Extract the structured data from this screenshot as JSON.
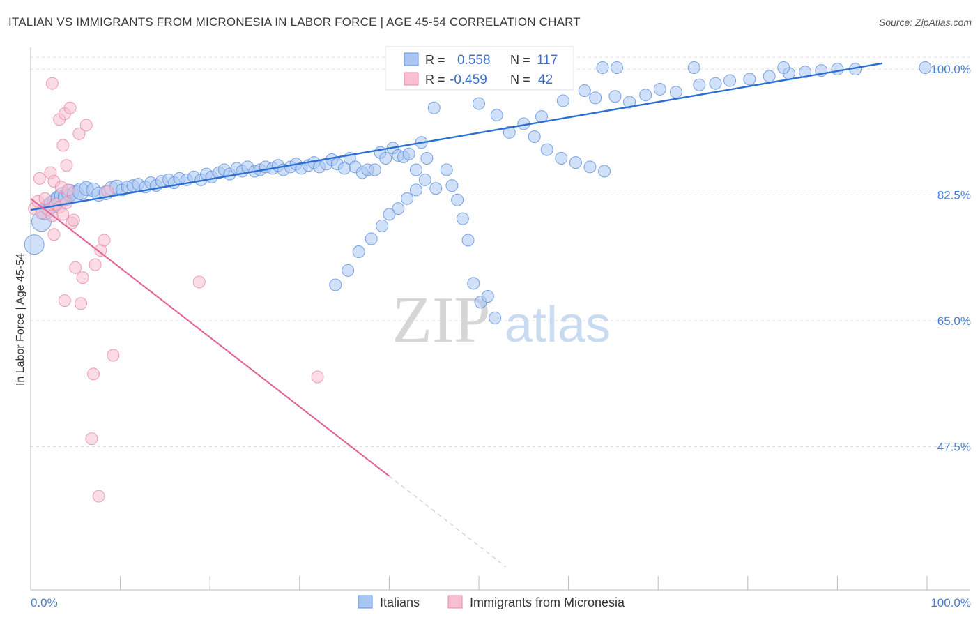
{
  "title": "ITALIAN VS IMMIGRANTS FROM MICRONESIA IN LABOR FORCE | AGE 45-54 CORRELATION CHART",
  "source": "Source: ZipAtlas.com",
  "watermark": {
    "zip": "ZIP",
    "atlas": "atlas"
  },
  "colors": {
    "blue": "#5b8fdc",
    "blue_fill": "#a9c6f2",
    "blue_line": "#2a6fd1",
    "pink": "#e888a8",
    "pink_fill": "#f7bfd0",
    "pink_line": "#e0699a",
    "grid": "#dddddd",
    "axis_label": "#4a7fd0"
  },
  "chart_data": {
    "type": "scatter",
    "xlabel": "",
    "ylabel": "In Labor Force | Age 45-54",
    "xlim": [
      0,
      100
    ],
    "ylim": [
      30,
      101.8
    ],
    "x_tick_labels": [
      "0.0%",
      "100.0%"
    ],
    "y_ticks": [
      47.5,
      65.0,
      82.5,
      100.0
    ],
    "y_tick_labels": [
      "47.5%",
      "65.0%",
      "82.5%",
      "100.0%"
    ],
    "legend_stats": [
      {
        "r_label": "R =",
        "r_value": "0.558",
        "n_label": "N =",
        "n_value": "117"
      },
      {
        "r_label": "R =",
        "r_value": "-0.459",
        "n_label": "N =",
        "n_value": "42"
      }
    ],
    "series": [
      {
        "name": "Italians",
        "trend": {
          "x": [
            0,
            95
          ],
          "y": [
            80.4,
            100.8
          ]
        },
        "points": [
          [
            0.4,
            75.6
          ],
          [
            1.2,
            78.8
          ],
          [
            1.6,
            80.2
          ],
          [
            2.0,
            80.8
          ],
          [
            2.4,
            81.2
          ],
          [
            2.8,
            81.6
          ],
          [
            3.2,
            82.0
          ],
          [
            3.6,
            82.4
          ],
          [
            4.0,
            82.2
          ],
          [
            4.4,
            82.8
          ],
          [
            5.0,
            82.6
          ],
          [
            5.6,
            83.0
          ],
          [
            6.2,
            83.4
          ],
          [
            7.0,
            83.2
          ],
          [
            7.6,
            82.6
          ],
          [
            8.4,
            82.8
          ],
          [
            9.0,
            83.4
          ],
          [
            9.6,
            83.6
          ],
          [
            10.2,
            83.2
          ],
          [
            10.8,
            83.6
          ],
          [
            11.4,
            83.8
          ],
          [
            12.0,
            84.0
          ],
          [
            12.8,
            83.6
          ],
          [
            13.4,
            84.2
          ],
          [
            14.0,
            83.8
          ],
          [
            14.6,
            84.4
          ],
          [
            15.4,
            84.6
          ],
          [
            16.0,
            84.2
          ],
          [
            16.6,
            84.8
          ],
          [
            17.4,
            84.6
          ],
          [
            18.2,
            85.0
          ],
          [
            19.0,
            84.6
          ],
          [
            19.6,
            85.4
          ],
          [
            20.2,
            85.0
          ],
          [
            21.0,
            85.6
          ],
          [
            21.6,
            86.0
          ],
          [
            22.2,
            85.4
          ],
          [
            23.0,
            86.2
          ],
          [
            23.6,
            85.8
          ],
          [
            24.2,
            86.4
          ],
          [
            25.0,
            85.8
          ],
          [
            25.6,
            86.0
          ],
          [
            26.2,
            86.4
          ],
          [
            27.0,
            86.2
          ],
          [
            27.6,
            86.6
          ],
          [
            28.2,
            86.0
          ],
          [
            29.0,
            86.4
          ],
          [
            29.6,
            86.8
          ],
          [
            30.2,
            86.2
          ],
          [
            31.0,
            86.6
          ],
          [
            31.6,
            87.0
          ],
          [
            32.2,
            86.4
          ],
          [
            33.0,
            86.8
          ],
          [
            33.6,
            87.4
          ],
          [
            34.2,
            86.8
          ],
          [
            35.0,
            86.2
          ],
          [
            35.6,
            87.6
          ],
          [
            36.2,
            86.4
          ],
          [
            37.0,
            85.6
          ],
          [
            37.6,
            86.0
          ],
          [
            38.4,
            86.0
          ],
          [
            39.0,
            88.4
          ],
          [
            39.6,
            87.6
          ],
          [
            40.4,
            89.0
          ],
          [
            41.0,
            88.0
          ],
          [
            41.6,
            87.8
          ],
          [
            42.2,
            88.2
          ],
          [
            43.0,
            86.0
          ],
          [
            43.6,
            89.8
          ],
          [
            44.2,
            87.6
          ],
          [
            45.2,
            83.4
          ],
          [
            46.4,
            86.0
          ],
          [
            47.0,
            83.8
          ],
          [
            47.6,
            81.8
          ],
          [
            48.2,
            79.2
          ],
          [
            48.8,
            76.2
          ],
          [
            49.4,
            70.2
          ],
          [
            50.2,
            67.6
          ],
          [
            51.0,
            68.4
          ],
          [
            51.8,
            65.4
          ],
          [
            44.0,
            84.6
          ],
          [
            43.0,
            83.2
          ],
          [
            42.0,
            82.0
          ],
          [
            41.0,
            80.6
          ],
          [
            40.0,
            79.8
          ],
          [
            39.2,
            78.2
          ],
          [
            38.0,
            76.4
          ],
          [
            36.6,
            74.6
          ],
          [
            35.4,
            72.0
          ],
          [
            34.0,
            70.0
          ],
          [
            55.0,
            92.4
          ],
          [
            57.0,
            93.4
          ],
          [
            59.4,
            95.6
          ],
          [
            61.8,
            97.0
          ],
          [
            63.0,
            96.0
          ],
          [
            65.2,
            96.2
          ],
          [
            66.8,
            95.4
          ],
          [
            68.6,
            96.4
          ],
          [
            70.2,
            97.2
          ],
          [
            72.0,
            96.8
          ],
          [
            74.6,
            97.8
          ],
          [
            76.4,
            98.0
          ],
          [
            78.0,
            98.4
          ],
          [
            80.2,
            98.6
          ],
          [
            82.4,
            99.0
          ],
          [
            84.6,
            99.4
          ],
          [
            86.4,
            99.6
          ],
          [
            88.2,
            99.8
          ],
          [
            90.0,
            100.0
          ],
          [
            92.0,
            100.0
          ],
          [
            63.8,
            100.2
          ],
          [
            65.4,
            100.2
          ],
          [
            74.0,
            100.2
          ],
          [
            84.0,
            100.2
          ],
          [
            99.8,
            100.2
          ],
          [
            45.0,
            94.6
          ],
          [
            50.0,
            95.2
          ],
          [
            52.0,
            93.6
          ],
          [
            53.4,
            91.2
          ],
          [
            56.2,
            90.6
          ],
          [
            57.6,
            88.8
          ],
          [
            59.2,
            87.6
          ],
          [
            60.8,
            87.0
          ],
          [
            62.4,
            86.4
          ],
          [
            64.0,
            85.8
          ]
        ]
      },
      {
        "name": "Immigrants from Micronesia",
        "trend": {
          "x": [
            0,
            40
          ],
          "y": [
            82.0,
            43.4
          ]
        },
        "trend_dashed": {
          "x": [
            40,
            53
          ],
          "y": [
            43.4,
            30.8
          ]
        },
        "points": [
          [
            0.4,
            80.6
          ],
          [
            0.8,
            81.6
          ],
          [
            1.2,
            80.0
          ],
          [
            1.6,
            82.0
          ],
          [
            2.0,
            80.4
          ],
          [
            2.4,
            79.6
          ],
          [
            2.8,
            81.2
          ],
          [
            3.2,
            80.8
          ],
          [
            3.6,
            79.8
          ],
          [
            4.0,
            81.4
          ],
          [
            1.0,
            84.8
          ],
          [
            2.2,
            85.6
          ],
          [
            2.6,
            84.4
          ],
          [
            3.4,
            83.6
          ],
          [
            4.2,
            83.2
          ],
          [
            4.6,
            78.6
          ],
          [
            4.8,
            79.0
          ],
          [
            2.4,
            98.0
          ],
          [
            3.2,
            93.0
          ],
          [
            3.8,
            93.8
          ],
          [
            4.4,
            94.6
          ],
          [
            5.4,
            91.0
          ],
          [
            6.2,
            92.2
          ],
          [
            3.6,
            89.4
          ],
          [
            4.0,
            86.6
          ],
          [
            2.6,
            77.0
          ],
          [
            5.0,
            72.4
          ],
          [
            5.8,
            71.0
          ],
          [
            3.8,
            67.8
          ],
          [
            5.6,
            67.4
          ],
          [
            7.2,
            72.8
          ],
          [
            7.8,
            74.8
          ],
          [
            8.2,
            76.2
          ],
          [
            8.6,
            83.0
          ],
          [
            18.8,
            70.4
          ],
          [
            9.2,
            60.2
          ],
          [
            7.0,
            57.6
          ],
          [
            32.0,
            57.2
          ],
          [
            6.8,
            48.6
          ],
          [
            7.6,
            40.6
          ]
        ]
      }
    ]
  },
  "legend": {
    "items": [
      "Italians",
      "Immigrants from Micronesia"
    ]
  }
}
